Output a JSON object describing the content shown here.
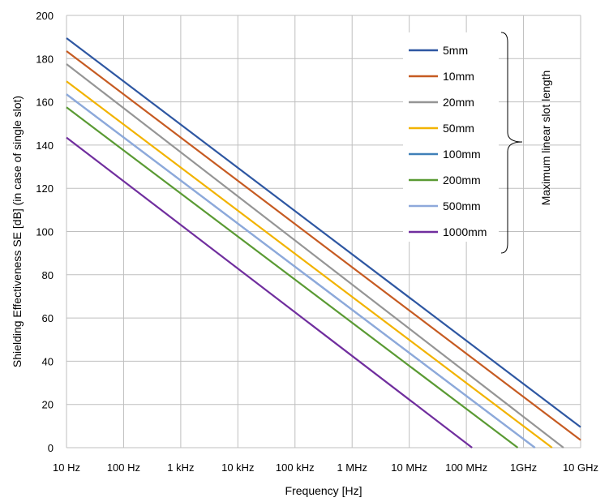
{
  "chart_data": {
    "type": "line",
    "xscale": "log",
    "xlim": [
      10,
      10000000000
    ],
    "ylim": [
      0,
      200
    ],
    "xticks": [
      {
        "value": 10,
        "label": "10 Hz"
      },
      {
        "value": 100,
        "label": "100 Hz"
      },
      {
        "value": 1000,
        "label": "1 kHz"
      },
      {
        "value": 10000,
        "label": "10 kHz"
      },
      {
        "value": 100000,
        "label": "100 kHz"
      },
      {
        "value": 1000000,
        "label": "1 MHz"
      },
      {
        "value": 10000000,
        "label": "10 MHz"
      },
      {
        "value": 100000000,
        "label": "100 MHz"
      },
      {
        "value": 1000000000,
        "label": "1GHz"
      },
      {
        "value": 10000000000,
        "label": "10 GHz"
      }
    ],
    "yticks": [
      0,
      20,
      40,
      60,
      80,
      100,
      120,
      140,
      160,
      180,
      200
    ],
    "xlabel": "Frequency [Hz]",
    "ylabel": "Shielding Effectiveness SE [dB] (in case of single slot)",
    "grid": true,
    "legend_position": "top-right",
    "legend_group_label": "Maximum linear slot length",
    "series": [
      {
        "name": "5mm",
        "color": "#2E57A2",
        "x": [
          10,
          10000000000
        ],
        "y": [
          189.5,
          9.5
        ]
      },
      {
        "name": "10mm",
        "color": "#C65B22",
        "x": [
          10,
          10000000000
        ],
        "y": [
          183.5,
          3.5
        ]
      },
      {
        "name": "20mm",
        "color": "#959595",
        "x": [
          10,
          5011872336
        ],
        "y": [
          177.5,
          0
        ]
      },
      {
        "name": "50mm",
        "color": "#F2B300",
        "x": [
          10,
          3162277660
        ],
        "y": [
          169.5,
          0
        ]
      },
      {
        "name": "100mm",
        "color": "#3F80B8",
        "x": [
          10,
          1584893192
        ],
        "y": [
          163.5,
          0
        ]
      },
      {
        "name": "200mm",
        "color": "#5A9A33",
        "x": [
          10,
          794328235
        ],
        "y": [
          157.5,
          0
        ]
      },
      {
        "name": "500mm",
        "color": "#8EA9DB",
        "x": [
          10,
          1584893192
        ],
        "y": [
          163.5,
          0
        ]
      },
      {
        "name": "1000mm",
        "color": "#702E9E",
        "x": [
          10,
          125892541
        ],
        "y": [
          143.5,
          0
        ]
      }
    ]
  }
}
